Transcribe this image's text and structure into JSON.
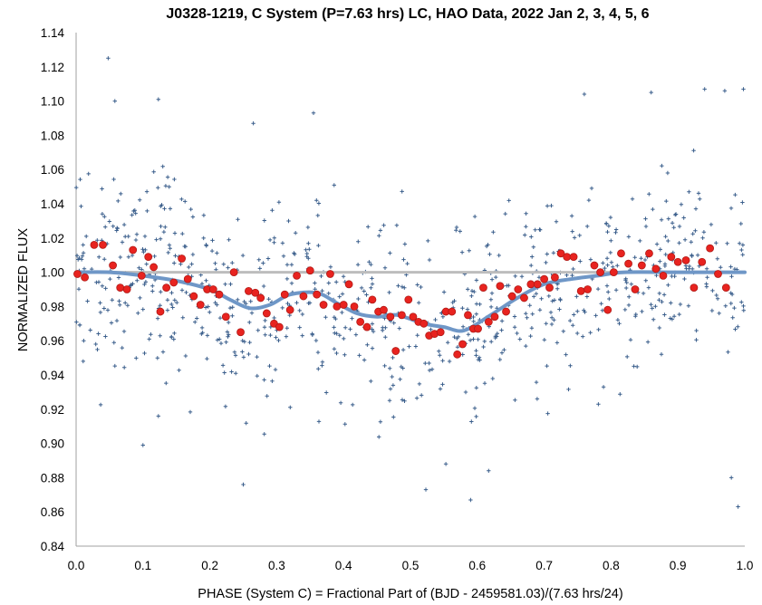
{
  "chart_data": {
    "type": "scatter",
    "title": "J0328-1219, C System (P=7.63 hrs) LC, HAO Data, 2022 Jan 2, 3, 4, 5, 6",
    "xlabel": "PHASE (System C) = Fractional Part of (BJD - 2459581.03)/(7.63 hrs/24)",
    "ylabel": "NORMALIZED FLUX",
    "xlim": [
      0,
      1
    ],
    "ylim": [
      0.84,
      1.14
    ],
    "x_ticks": [
      "0.0",
      "0.1",
      "0.2",
      "0.3",
      "0.4",
      "0.5",
      "0.6",
      "0.7",
      "0.8",
      "0.9",
      "1.0"
    ],
    "y_ticks": [
      "0.84",
      "0.86",
      "0.88",
      "0.90",
      "0.92",
      "0.94",
      "0.96",
      "0.98",
      "1.00",
      "1.02",
      "1.04",
      "1.06",
      "1.08",
      "1.10",
      "1.12",
      "1.14"
    ],
    "grid": false,
    "legend": "none",
    "colors": {
      "raw": "#3b5f8c",
      "binned": "#e8231f",
      "binned_edge": "#b01a16",
      "model": "#6f97c7",
      "baseline": "#bdbdbd"
    },
    "series": [
      {
        "kind": "reference-line",
        "x": [
          0,
          1
        ],
        "y": [
          1.0,
          1.0
        ]
      },
      {
        "kind": "model-curve",
        "x": [
          0,
          0.05,
          0.1,
          0.15,
          0.2,
          0.23,
          0.26,
          0.29,
          0.32,
          0.36,
          0.39,
          0.42,
          0.45,
          0.48,
          0.52,
          0.55,
          0.58,
          0.62,
          0.66,
          0.7,
          0.74,
          0.78,
          0.82,
          0.9,
          1.0
        ],
        "y": [
          1.0,
          1.0,
          0.998,
          0.995,
          0.99,
          0.984,
          0.979,
          0.981,
          0.987,
          0.988,
          0.982,
          0.976,
          0.974,
          0.975,
          0.97,
          0.968,
          0.966,
          0.975,
          0.985,
          0.993,
          0.996,
          0.998,
          1.0,
          1.0,
          1.0
        ]
      },
      {
        "kind": "binned",
        "x": [
          0.002,
          0.013,
          0.027,
          0.04,
          0.055,
          0.066,
          0.076,
          0.085,
          0.098,
          0.108,
          0.116,
          0.126,
          0.135,
          0.146,
          0.158,
          0.167,
          0.176,
          0.186,
          0.196,
          0.205,
          0.214,
          0.224,
          0.236,
          0.246,
          0.258,
          0.268,
          0.276,
          0.285,
          0.296,
          0.304,
          0.312,
          0.32,
          0.33,
          0.34,
          0.35,
          0.36,
          0.37,
          0.38,
          0.39,
          0.4,
          0.408,
          0.416,
          0.425,
          0.435,
          0.443,
          0.452,
          0.46,
          0.47,
          0.478,
          0.487,
          0.497,
          0.504,
          0.512,
          0.52,
          0.528,
          0.536,
          0.545,
          0.553,
          0.562,
          0.57,
          0.578,
          0.586,
          0.594,
          0.601,
          0.609,
          0.617,
          0.626,
          0.634,
          0.643,
          0.652,
          0.661,
          0.67,
          0.68,
          0.69,
          0.7,
          0.708,
          0.716,
          0.725,
          0.734,
          0.744,
          0.755,
          0.765,
          0.775,
          0.784,
          0.795,
          0.804,
          0.815,
          0.826,
          0.836,
          0.846,
          0.857,
          0.867,
          0.878,
          0.89,
          0.9,
          0.912,
          0.924,
          0.936,
          0.948,
          0.96,
          0.972
        ],
        "y": [
          0.999,
          0.997,
          1.016,
          1.016,
          1.004,
          0.991,
          0.99,
          1.013,
          0.998,
          1.009,
          1.003,
          0.977,
          0.991,
          0.994,
          1.008,
          0.996,
          0.986,
          0.981,
          0.99,
          0.99,
          0.987,
          0.974,
          1.0,
          0.965,
          0.989,
          0.988,
          0.985,
          0.976,
          0.97,
          0.968,
          0.987,
          0.978,
          0.998,
          0.986,
          1.001,
          0.987,
          0.981,
          0.999,
          0.98,
          0.981,
          0.993,
          0.98,
          0.971,
          0.968,
          0.984,
          0.977,
          0.978,
          0.974,
          0.954,
          0.975,
          0.984,
          0.974,
          0.971,
          0.97,
          0.963,
          0.964,
          0.965,
          0.977,
          0.977,
          0.952,
          0.958,
          0.975,
          0.967,
          0.967,
          0.991,
          0.971,
          0.974,
          0.992,
          0.977,
          0.986,
          0.99,
          0.985,
          0.993,
          0.993,
          0.996,
          0.991,
          0.997,
          1.011,
          1.009,
          1.009,
          0.989,
          0.99,
          1.004,
          1.0,
          0.978,
          1.0,
          1.011,
          1.005,
          0.99,
          1.004,
          1.011,
          1.002,
          0.998,
          1.009,
          1.006,
          1.007,
          0.991,
          1.006,
          1.014,
          0.999,
          0.991
        ]
      },
      {
        "kind": "raw",
        "count": 820,
        "noise_sigma": 0.028,
        "notable_points": [
          {
            "x": 0.048,
            "y": 1.125
          },
          {
            "x": 0.058,
            "y": 1.1
          },
          {
            "x": 0.123,
            "y": 1.101
          },
          {
            "x": 0.265,
            "y": 1.087
          },
          {
            "x": 0.355,
            "y": 1.093
          },
          {
            "x": 0.1,
            "y": 0.899
          },
          {
            "x": 0.123,
            "y": 0.916
          },
          {
            "x": 0.25,
            "y": 0.876
          },
          {
            "x": 0.523,
            "y": 0.873
          },
          {
            "x": 0.553,
            "y": 0.888
          },
          {
            "x": 0.59,
            "y": 0.867
          },
          {
            "x": 0.617,
            "y": 0.884
          },
          {
            "x": 0.76,
            "y": 1.104
          },
          {
            "x": 0.86,
            "y": 1.105
          },
          {
            "x": 0.94,
            "y": 1.107
          },
          {
            "x": 0.97,
            "y": 1.106
          },
          {
            "x": 0.98,
            "y": 0.88
          },
          {
            "x": 0.99,
            "y": 0.863
          },
          {
            "x": 0.998,
            "y": 1.107
          }
        ]
      }
    ]
  }
}
